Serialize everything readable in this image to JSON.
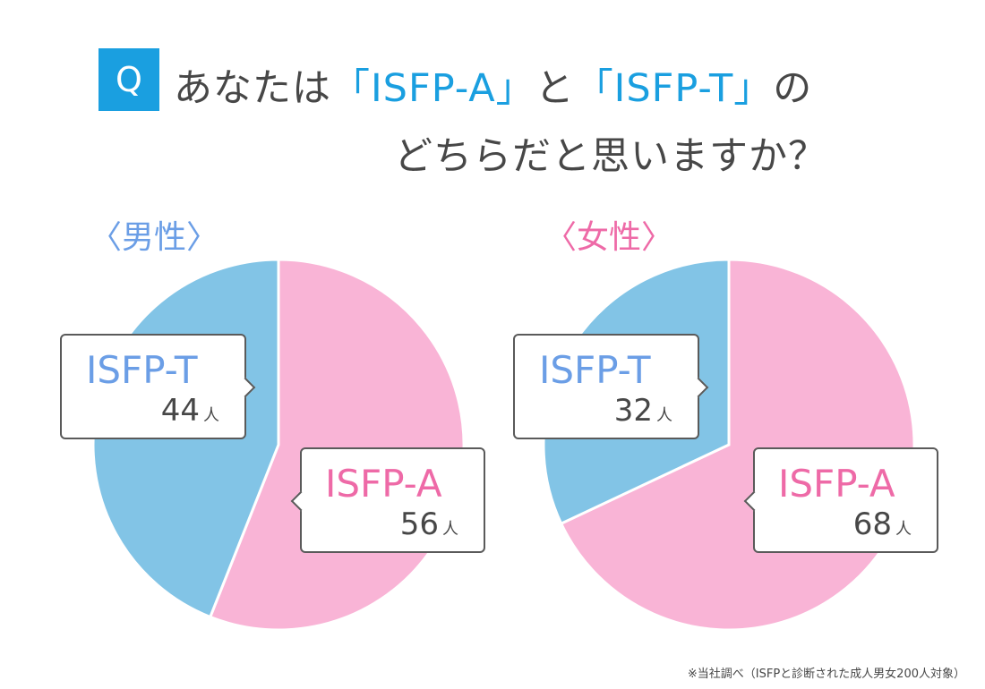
{
  "question": {
    "badge": "Q",
    "line1_pre": "あなたは",
    "line1_a": "「ISFP-A」",
    "line1_mid": "と",
    "line1_t": "「ISFP-T」",
    "line1_post": "の",
    "line2": "どちらだと思いますか？"
  },
  "colors": {
    "accent": "#1a9fe0",
    "pink": "#f9b4d6",
    "blue": "#82c4e6",
    "label_blue": "#6b9ee6",
    "label_pink": "#ee6aa7"
  },
  "chart_data": [
    {
      "type": "pie",
      "title": "〈男性〉",
      "labels": [
        "ISFP-A",
        "ISFP-T"
      ],
      "values": [
        56,
        44
      ],
      "unit": "人",
      "colors": [
        "#f9b4d6",
        "#82c4e6"
      ]
    },
    {
      "type": "pie",
      "title": "〈女性〉",
      "labels": [
        "ISFP-A",
        "ISFP-T"
      ],
      "values": [
        68,
        32
      ],
      "unit": "人",
      "colors": [
        "#f9b4d6",
        "#82c4e6"
      ]
    }
  ],
  "footnote": "※当社調べ（ISFPと診断された成人男女200人対象）"
}
